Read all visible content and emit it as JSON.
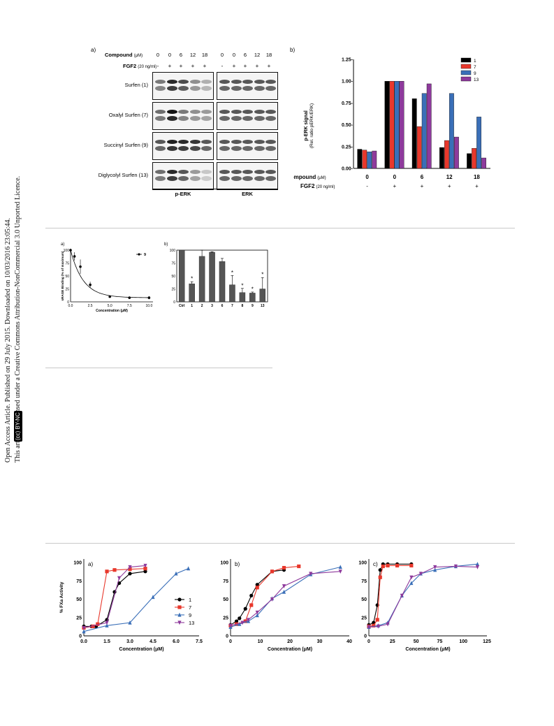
{
  "sidebar": {
    "line1": "Open Access Article. Published on 29 July 2015. Downloaded on 10/03/2016 23:05:44.",
    "line2": "This article is licensed under a Creative Commons Attribution-NonCommercial 3.0 Unported Licence.",
    "badge_cc": "(cc)",
    "badge_text": "BY-NC"
  },
  "fig1": {
    "panel_a_label": "a)",
    "panel_b_label": "b)",
    "compound_label": "Compound",
    "compound_unit": "(μM)",
    "fgf2_label": "FGF2",
    "fgf2_unit": "(20 ng/ml)",
    "compound_values": [
      "0",
      "0",
      "6",
      "12",
      "18"
    ],
    "fgf2_values": [
      "-",
      "+",
      "+",
      "+",
      "+"
    ],
    "rows": [
      "Surfen (1)",
      "Oxalyl Surfen (7)",
      "Succinyl Surfen (9)",
      "Diglycolyl Surfen (13)"
    ],
    "blot_labels": [
      "p-ERK",
      "ERK"
    ]
  },
  "chart_data": [
    {
      "type": "bar",
      "title": "",
      "ylabel": "p-ERK signal (Rel. ratio pERK/ERK)",
      "ylim": [
        0,
        1.25
      ],
      "yticks": [
        "0.00-",
        "0.25-",
        "0.50-",
        "0.75-",
        "1.00-",
        "1.25-"
      ],
      "categories": [
        "0",
        "0",
        "6",
        "12",
        "18"
      ],
      "fgf2": [
        "-",
        "+",
        "+",
        "+",
        "+"
      ],
      "xlabel_compound": "Compound (μM)",
      "xlabel_fgf2": "FGF2 (20 ng/ml)",
      "legend_position": "top-right",
      "series": [
        {
          "name": "1",
          "color": "#000000",
          "values": [
            0.22,
            1.0,
            0.8,
            0.24,
            0.17
          ]
        },
        {
          "name": "7",
          "color": "#e8382c",
          "values": [
            0.21,
            1.0,
            0.48,
            0.32,
            0.23
          ]
        },
        {
          "name": "9",
          "color": "#3a6fb8",
          "values": [
            0.19,
            1.0,
            0.86,
            0.86,
            0.59
          ]
        },
        {
          "name": "13",
          "color": "#8e3a9c",
          "values": [
            0.2,
            1.0,
            0.97,
            0.36,
            0.12
          ]
        }
      ]
    },
    {
      "type": "line",
      "panel": "a)",
      "ylabel": "sRAGE Binding (% of maximum)",
      "xlabel": "Concentration (μM)",
      "xlim": [
        0,
        10.5
      ],
      "ylim": [
        0,
        100
      ],
      "xticks": [
        "0.0",
        "2.5",
        "5.0",
        "7.5",
        "10.0"
      ],
      "yticks": [
        "0",
        "25",
        "50",
        "75",
        "100"
      ],
      "series": [
        {
          "name": "9",
          "x": [
            0,
            0.5,
            1.25,
            2.5,
            5,
            7.5,
            10
          ],
          "y": [
            100,
            88,
            68,
            33,
            10,
            8,
            8
          ],
          "err": [
            3,
            8,
            14,
            6,
            1,
            1,
            3
          ]
        }
      ]
    },
    {
      "type": "bar",
      "panel": "b)",
      "categories": [
        "Ctrl",
        "1",
        "2",
        "3",
        "6",
        "7",
        "8",
        "9",
        "13"
      ],
      "values": [
        100,
        35,
        88,
        96,
        78,
        33,
        18,
        17,
        25
      ],
      "err": [
        0,
        4,
        12,
        1,
        6,
        18,
        8,
        2,
        22
      ],
      "significant": [
        false,
        true,
        false,
        false,
        false,
        true,
        true,
        true,
        true
      ],
      "sig_mark": "*",
      "ylim": [
        0,
        100
      ],
      "yticks": [
        "0",
        "25",
        "50",
        "75",
        "100"
      ]
    },
    {
      "type": "line",
      "panel": "a)",
      "ylabel": "% FXa Activity",
      "xlabel": "Concentration (μM)",
      "xlim": [
        0,
        7.5
      ],
      "ylim": [
        0,
        105
      ],
      "xticks": [
        "0.0",
        "1.5",
        "3.0",
        "4.5",
        "6.0",
        "7.5"
      ],
      "yticks": [
        "0",
        "25",
        "50",
        "75",
        "100"
      ],
      "legend_position": "right",
      "series": [
        {
          "name": "1",
          "color": "#000000",
          "marker": "circle",
          "x": [
            0,
            0.5,
            0.8,
            1.5,
            2.0,
            2.3,
            3.0,
            4.0
          ],
          "y": [
            13,
            13,
            13,
            22,
            60,
            72,
            85,
            88
          ]
        },
        {
          "name": "7",
          "color": "#e8382c",
          "marker": "square",
          "x": [
            0,
            0.6,
            0.9,
            1.5,
            2.0,
            3.0,
            4.0
          ],
          "y": [
            11,
            13,
            16,
            88,
            90,
            91,
            92
          ]
        },
        {
          "name": "9",
          "color": "#3a6fb8",
          "marker": "triangle",
          "x": [
            0,
            1.5,
            3.0,
            4.5,
            6.0,
            6.8
          ],
          "y": [
            6,
            14,
            18,
            53,
            85,
            92
          ]
        },
        {
          "name": "13",
          "color": "#8e3a9c",
          "marker": "triangle-down",
          "x": [
            0,
            1.5,
            2.3,
            3.0,
            4.0
          ],
          "y": [
            11,
            18,
            79,
            94,
            96
          ]
        }
      ]
    },
    {
      "type": "line",
      "panel": "b)",
      "xlabel": "Concentration (μM)",
      "xlim": [
        0,
        40
      ],
      "ylim": [
        0,
        105
      ],
      "xticks": [
        "0",
        "10",
        "20",
        "30",
        "40"
      ],
      "yticks": [
        "0",
        "25",
        "50",
        "75",
        "100"
      ],
      "series": [
        {
          "name": "1",
          "color": "#000000",
          "marker": "circle",
          "x": [
            0,
            2,
            3,
            5,
            7,
            9,
            14,
            18
          ],
          "y": [
            15,
            20,
            24,
            37,
            55,
            70,
            88,
            90
          ]
        },
        {
          "name": "7",
          "color": "#e8382c",
          "marker": "square",
          "x": [
            0,
            2,
            5,
            7,
            9,
            14,
            18,
            23
          ],
          "y": [
            14,
            16,
            20,
            42,
            66,
            88,
            93,
            95
          ]
        },
        {
          "name": "9",
          "color": "#3a6fb8",
          "marker": "triangle",
          "x": [
            0,
            3,
            6,
            9,
            14,
            18,
            27,
            37
          ],
          "y": [
            12,
            16,
            20,
            28,
            51,
            60,
            84,
            94
          ]
        },
        {
          "name": "13",
          "color": "#8e3a9c",
          "marker": "triangle-down",
          "x": [
            0,
            4,
            6,
            9,
            14,
            18,
            27,
            37
          ],
          "y": [
            14,
            18,
            22,
            32,
            50,
            68,
            85,
            88
          ]
        }
      ]
    },
    {
      "type": "line",
      "panel": "c)",
      "xlabel": "Concentration (μM)",
      "xlim": [
        0,
        125
      ],
      "ylim": [
        0,
        105
      ],
      "xticks": [
        "0",
        "25",
        "50",
        "75",
        "100",
        "125"
      ],
      "yticks": [
        "0",
        "25",
        "50",
        "75",
        "100"
      ],
      "series": [
        {
          "name": "1",
          "color": "#000000",
          "marker": "circle",
          "x": [
            0,
            5,
            9,
            12,
            15,
            20,
            30,
            45
          ],
          "y": [
            15,
            18,
            42,
            90,
            98,
            98,
            98,
            98
          ]
        },
        {
          "name": "7",
          "color": "#e8382c",
          "marker": "square",
          "x": [
            0,
            5,
            9,
            12,
            15,
            20,
            30,
            45
          ],
          "y": [
            13,
            14,
            22,
            80,
            95,
            96,
            96,
            96
          ]
        },
        {
          "name": "9",
          "color": "#3a6fb8",
          "marker": "triangle",
          "x": [
            0,
            10,
            20,
            35,
            45,
            55,
            70,
            92,
            115
          ],
          "y": [
            12,
            14,
            18,
            55,
            72,
            85,
            90,
            95,
            98
          ]
        },
        {
          "name": "13",
          "color": "#8e3a9c",
          "marker": "triangle-down",
          "x": [
            0,
            10,
            20,
            35,
            45,
            55,
            70,
            92,
            115
          ],
          "y": [
            12,
            13,
            16,
            55,
            80,
            85,
            94,
            95,
            94
          ]
        }
      ]
    }
  ]
}
